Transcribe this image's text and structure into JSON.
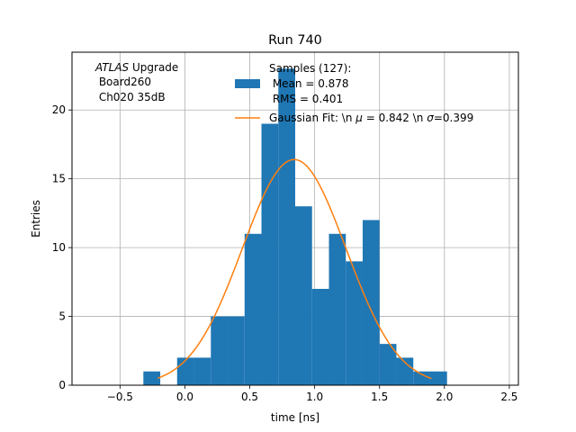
{
  "chart_data": {
    "type": "bar",
    "title": "Run 740",
    "xlabel": "time [ns]",
    "ylabel": "Entries",
    "xlim": [
      -0.87,
      2.57
    ],
    "ylim": [
      0,
      24.2
    ],
    "x_ticks": [
      -0.5,
      0.0,
      0.5,
      1.0,
      1.5,
      2.0,
      2.5
    ],
    "x_tick_labels": [
      "−0.5",
      "0.0",
      "0.5",
      "1.0",
      "1.5",
      "2.0",
      "2.5"
    ],
    "y_ticks": [
      0,
      5,
      10,
      15,
      20
    ],
    "y_tick_labels": [
      "0",
      "5",
      "10",
      "15",
      "20"
    ],
    "grid": true,
    "annotation": {
      "lines": [
        "ATLAS Upgrade",
        " Board260",
        " Ch020 35dB"
      ],
      "italic_word": "ATLAS",
      "rest_first_line": " Upgrade"
    },
    "legend": {
      "placement": "top-center",
      "hist_label_lines": [
        "Samples (127):",
        " Mean = 0.878",
        " RMS = 0.401"
      ],
      "fit_label_text": "Gaussian Fit: \\n ",
      "fit_label_mu": "μ",
      "fit_label_mid": " = 0.842 \\n ",
      "fit_label_sigma": "σ",
      "fit_label_end": "=0.399"
    },
    "colors": {
      "histogram": "#1f77b4",
      "fit": "#ff7f0e",
      "grid": "#b0b0b0"
    },
    "histogram": {
      "name": "Samples (127)",
      "bin_edges": [
        -0.32,
        -0.19,
        -0.06,
        0.07,
        0.2,
        0.33,
        0.46,
        0.59,
        0.72,
        0.85,
        0.98,
        1.11,
        1.24,
        1.37,
        1.5,
        1.63,
        1.76,
        1.89,
        2.02
      ],
      "counts": [
        1,
        0,
        2,
        2,
        5,
        5,
        11,
        19,
        23,
        13,
        7,
        11,
        9,
        12,
        3,
        2,
        1,
        1
      ]
    },
    "fit": {
      "name": "Gaussian Fit",
      "mu": 0.842,
      "sigma": 0.399,
      "amplitude": 16.4,
      "x_range": [
        -0.21,
        1.9
      ]
    }
  }
}
